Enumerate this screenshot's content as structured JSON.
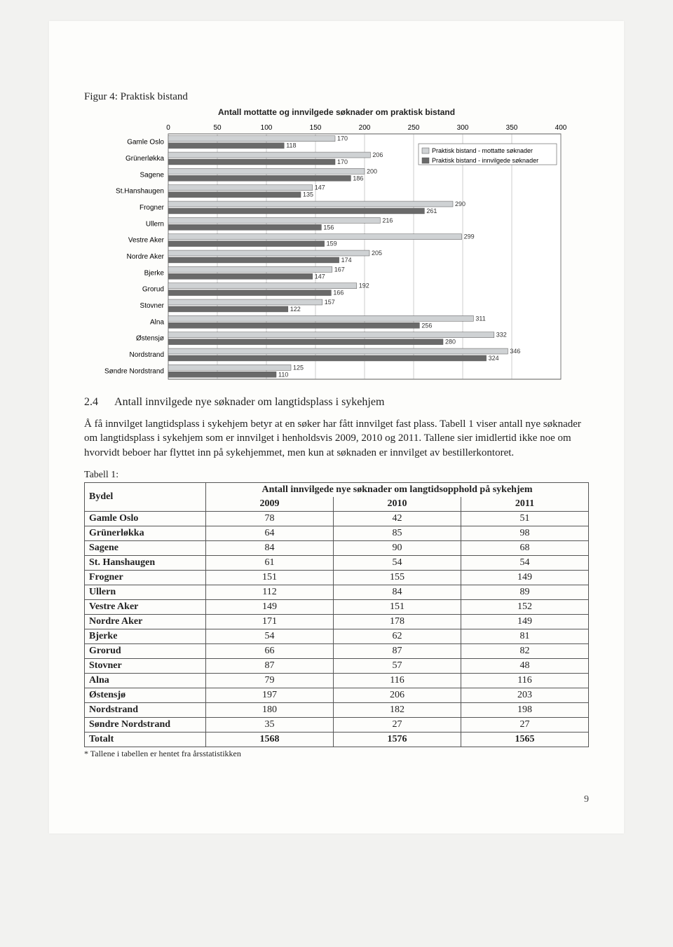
{
  "figure": {
    "caption": "Figur 4: Praktisk bistand",
    "chart": {
      "type": "bar-horizontal-grouped",
      "title": "Antall mottatte og innvilgede søknader om praktisk bistand",
      "x_axis": {
        "min": 0,
        "max": 400,
        "tick_step": 50,
        "gridline_positions": [
          0,
          50,
          100,
          150,
          200,
          250,
          300,
          350,
          400
        ]
      },
      "tick_labels": [
        "0",
        "50",
        "100",
        "150",
        "200",
        "250",
        "300",
        "350",
        "400"
      ],
      "legend": [
        {
          "label": "Praktisk bistand - mottatte søknader",
          "color": "#cfd2d4"
        },
        {
          "label": "Praktisk bistand - innvilgede søknader",
          "color": "#6a6a6a"
        }
      ],
      "bar_fill_mottatte": "#cfd2d4",
      "bar_fill_innvilgede": "#6a6a6a",
      "bar_border": "#555",
      "grid_color": "#999",
      "axis_color": "#333",
      "bg_color": "#ffffff",
      "cat_label_fontsize": 10,
      "value_label_fontsize": 9,
      "categories": [
        "Gamle Oslo",
        "Grünerløkka",
        "Sagene",
        "St.Hanshaugen",
        "Frogner",
        "Ullern",
        "Vestre Aker",
        "Nordre Aker",
        "Bjerke",
        "Grorud",
        "Stovner",
        "Alna",
        "Østensjø",
        "Nordstrand",
        "Søndre Nordstrand"
      ],
      "series": {
        "mottatte": [
          170,
          206,
          200,
          147,
          290,
          216,
          299,
          205,
          167,
          192,
          157,
          311,
          332,
          346,
          125
        ],
        "innvilgede": [
          118,
          170,
          186,
          135,
          261,
          156,
          159,
          174,
          147,
          166,
          122,
          256,
          280,
          324,
          110
        ]
      }
    }
  },
  "section": {
    "number": "2.4",
    "title": "Antall innvilgede nye søknader om langtidsplass i sykehjem",
    "paragraph": "Å få innvilget langtidsplass i sykehjem betyr at en søker har fått innvilget fast plass. Tabell 1 viser antall nye søknader om langtidsplass i sykehjem som er innvilget i henholdsvis 2009, 2010 og 2011. Tallene sier imidlertid ikke noe om hvorvidt beboer har flyttet inn på sykehjemmet, men kun at søknaden er innvilget av bestillerkontoret."
  },
  "table": {
    "caption": "Tabell 1:",
    "col_header_main": "Bydel",
    "col_header_span": "Antall innvilgede nye søknader om langtidsopphold på sykehjem",
    "years": [
      "2009",
      "2010",
      "2011"
    ],
    "rows": [
      {
        "name": "Gamle Oslo",
        "v": [
          78,
          42,
          51
        ]
      },
      {
        "name": "Grünerløkka",
        "v": [
          64,
          85,
          98
        ]
      },
      {
        "name": "Sagene",
        "v": [
          84,
          90,
          68
        ]
      },
      {
        "name": "St. Hanshaugen",
        "v": [
          61,
          54,
          54
        ]
      },
      {
        "name": "Frogner",
        "v": [
          151,
          155,
          149
        ]
      },
      {
        "name": "Ullern",
        "v": [
          112,
          84,
          89
        ]
      },
      {
        "name": "Vestre Aker",
        "v": [
          149,
          151,
          152
        ]
      },
      {
        "name": "Nordre Aker",
        "v": [
          171,
          178,
          149
        ]
      },
      {
        "name": "Bjerke",
        "v": [
          54,
          62,
          81
        ]
      },
      {
        "name": "Grorud",
        "v": [
          66,
          87,
          82
        ]
      },
      {
        "name": "Stovner",
        "v": [
          87,
          57,
          48
        ]
      },
      {
        "name": "Alna",
        "v": [
          79,
          116,
          116
        ]
      },
      {
        "name": "Østensjø",
        "v": [
          197,
          206,
          203
        ]
      },
      {
        "name": "Nordstrand",
        "v": [
          180,
          182,
          198
        ]
      },
      {
        "name": "Søndre Nordstrand",
        "v": [
          35,
          27,
          27
        ]
      }
    ],
    "total_label": "Totalt",
    "total": [
      1568,
      1576,
      1565
    ],
    "footnote": "* Tallene i tabellen er hentet fra årsstatistikken"
  },
  "page_number": "9"
}
